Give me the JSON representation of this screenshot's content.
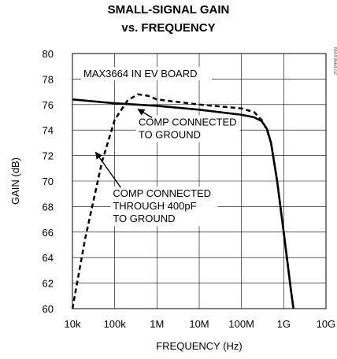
{
  "chart_data": {
    "type": "line",
    "title": "SMALL-SIGNAL GAIN",
    "subtitle": "vs. FREQUENCY",
    "xlabel": "FREQUENCY (Hz)",
    "ylabel": "GAIN (dB)",
    "x_scale": "log",
    "xlim": [
      10000,
      10000000000
    ],
    "ylim": [
      60,
      80
    ],
    "x_ticks": [
      10000,
      100000,
      1000000,
      10000000,
      100000000,
      1000000000,
      10000000000
    ],
    "x_tick_labels": [
      "10k",
      "100k",
      "1M",
      "10M",
      "100M",
      "1G",
      "10G"
    ],
    "y_ticks": [
      60,
      62,
      64,
      66,
      68,
      70,
      72,
      74,
      76,
      78,
      80
    ],
    "y_tick_labels": [
      "60",
      "62",
      "64",
      "66",
      "68",
      "70",
      "72",
      "74",
      "76",
      "78",
      "80"
    ],
    "grid": true,
    "series": [
      {
        "name": "COMP CONNECTED TO GROUND",
        "style": "solid",
        "color": "#000000",
        "x": [
          10000,
          100000,
          1000000,
          10000000,
          100000000,
          200000000,
          300000000,
          400000000,
          500000000,
          700000000,
          1000000000,
          1500000000,
          1700000000
        ],
        "y": [
          76.4,
          76.1,
          75.9,
          75.6,
          75.2,
          75.0,
          74.7,
          74.1,
          73.0,
          70.0,
          66.0,
          61.3,
          60.0
        ]
      },
      {
        "name": "COMP CONNECTED THROUGH 400pF TO GROUND",
        "style": "dashed",
        "color": "#000000",
        "x": [
          10000,
          20000,
          50000,
          100000,
          200000,
          350000,
          600000,
          1000000,
          10000000,
          100000000,
          200000000,
          300000000,
          400000000,
          500000000,
          700000000,
          1000000000,
          1500000000,
          1700000000
        ],
        "y": [
          60.0,
          65.5,
          71.5,
          74.8,
          76.3,
          76.8,
          76.7,
          76.4,
          76.0,
          75.7,
          75.4,
          74.8,
          74.0,
          73.0,
          70.0,
          66.0,
          61.3,
          60.0
        ]
      }
    ],
    "annotations": [
      {
        "text": "MAX3664 IN EV BOARD"
      },
      {
        "lines": [
          "COMP CONNECTED",
          "TO GROUND"
        ],
        "x": 200000,
        "y": 74.6,
        "arrow_to": [
          300000,
          76.0
        ]
      },
      {
        "lines": [
          "COMP CONNECTED",
          "THROUGH 400pF",
          "TO GROUND"
        ],
        "x": 70000,
        "y": 69.0,
        "arrow_to": [
          30000,
          72.5
        ]
      }
    ],
    "figure_code": "MAX3664-02"
  }
}
